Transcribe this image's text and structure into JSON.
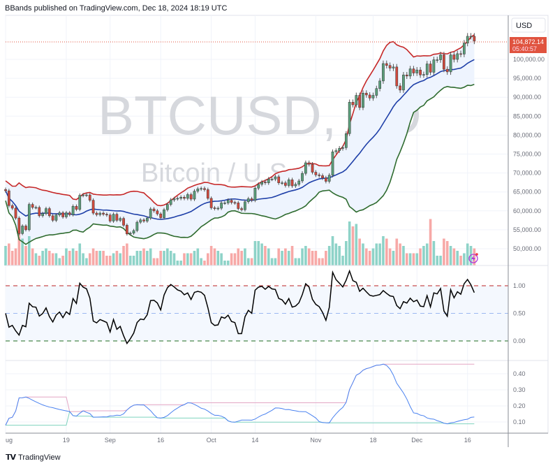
{
  "header": {
    "text": "BBands published on TradingView.com, Dec 18, 2024 18:19 UTC"
  },
  "footer": {
    "brand": "TradingView",
    "logo_text": "TV"
  },
  "watermark": {
    "symbol": "BTCUSD, 1D",
    "description": "Bitcoin / U.S. Dollar"
  },
  "currency_button": "USD",
  "last_price": {
    "value": "104,872.14",
    "countdown": "05:40:57",
    "color": "#e0533f"
  },
  "colors": {
    "up": "#5a9e7a",
    "down": "#d1493d",
    "upper_band": "#c62828",
    "basis": "#1e3fa8",
    "lower_band": "#2e6b2e",
    "band_fill": "#eef4fe",
    "vol_up": "#8ed3c8",
    "vol_down": "#f7a9a7",
    "bandwidth": "#4a82f0",
    "bw_high": "#e3a6c4",
    "bw_low": "#7fd3bf",
    "pctb": "#000000"
  },
  "chart_data": [
    {
      "type": "candlestick",
      "title": "",
      "start_date": "2024-08-01",
      "end_date": "2024-12-18",
      "close": [
        65300,
        61400,
        60700,
        58100,
        54000,
        56000,
        55000,
        61700,
        60900,
        60900,
        58700,
        59300,
        60600,
        58700,
        57500,
        58900,
        59500,
        58400,
        59500,
        59000,
        61200,
        60400,
        64100,
        64200,
        64200,
        62800,
        59400,
        59000,
        59400,
        59100,
        58900,
        57300,
        59100,
        57500,
        58000,
        56200,
        53900,
        54100,
        54800,
        57000,
        57600,
        57300,
        58100,
        60500,
        60000,
        59200,
        58200,
        60300,
        61700,
        62900,
        63200,
        63300,
        63600,
        63300,
        64300,
        63100,
        65200,
        65800,
        65900,
        65600,
        63300,
        60800,
        60600,
        60700,
        62100,
        62100,
        62800,
        62200,
        62100,
        60600,
        60300,
        62400,
        63200,
        62800,
        66000,
        67000,
        67600,
        67400,
        68400,
        68400,
        69000,
        67400,
        67400,
        66700,
        68200,
        66600,
        67000,
        67900,
        69900,
        72700,
        72300,
        70200,
        69500,
        69300,
        68700,
        67800,
        69400,
        75600,
        75900,
        76500,
        76700,
        80400,
        88700,
        88000,
        90500,
        87300,
        91100,
        90600,
        89800,
        90500,
        92300,
        94300,
        98900,
        98400,
        97700,
        98000,
        93000,
        91900,
        95900,
        95600,
        97500,
        96400,
        97200,
        95900,
        96000,
        98800,
        96600,
        99900,
        99900,
        101200,
        97400,
        96700,
        101200,
        100000,
        101500,
        101400,
        104300,
        106100,
        106100,
        104872.14
      ],
      "volume_relative": [
        40,
        45,
        30,
        35,
        90,
        55,
        40,
        60,
        35,
        25,
        20,
        30,
        35,
        30,
        25,
        25,
        15,
        20,
        35,
        30,
        35,
        30,
        45,
        25,
        15,
        25,
        35,
        30,
        30,
        30,
        20,
        20,
        25,
        30,
        25,
        40,
        45,
        20,
        20,
        30,
        30,
        35,
        30,
        35,
        15,
        15,
        30,
        30,
        35,
        30,
        25,
        10,
        10,
        25,
        25,
        25,
        30,
        35,
        15,
        10,
        25,
        40,
        35,
        30,
        25,
        10,
        10,
        25,
        25,
        35,
        30,
        35,
        15,
        15,
        50,
        50,
        45,
        40,
        35,
        15,
        15,
        35,
        30,
        35,
        30,
        40,
        15,
        15,
        35,
        40,
        35,
        30,
        30,
        15,
        15,
        30,
        40,
        60,
        45,
        40,
        20,
        50,
        90,
        80,
        85,
        55,
        45,
        35,
        30,
        35,
        45,
        45,
        60,
        55,
        35,
        30,
        55,
        45,
        40,
        25,
        25,
        25,
        25,
        35,
        40,
        45,
        95,
        50,
        20,
        20,
        55,
        50,
        40,
        35,
        30,
        20,
        25,
        45,
        40,
        35
      ],
      "indicator": "Bollinger Bands (20, 2)",
      "y_axis": {
        "ticks": [
          "100,000.00",
          "95,000.00",
          "90,000.00",
          "85,000.00",
          "80,000.00",
          "75,000.00",
          "70,000.00",
          "65,000.00",
          "60,000.00",
          "55,000.00",
          "50,000.00"
        ],
        "values": [
          100000,
          95000,
          90000,
          85000,
          80000,
          75000,
          70000,
          65000,
          60000,
          55000,
          50000
        ]
      },
      "ylim": [
        45000,
        109000
      ],
      "grid": true
    },
    {
      "type": "line",
      "indicator": "Bollinger Bands %B",
      "y_axis": {
        "ticks": [
          "1.00",
          "0.50",
          "0.00"
        ],
        "values": [
          1,
          0.5,
          0
        ]
      },
      "ylim": [
        -0.34,
        1.33
      ],
      "levels": [
        1.0,
        0.5,
        0.0
      ]
    },
    {
      "type": "line",
      "indicator": "Bollinger BandWidth",
      "y_axis": {
        "ticks": [
          "0.40",
          "0.30",
          "0.20",
          "0.10"
        ],
        "values": [
          0.4,
          0.3,
          0.2,
          0.1
        ]
      },
      "ylim": [
        0.05,
        0.48
      ]
    }
  ],
  "time_axis": [
    {
      "label": "ug",
      "date": "2024-08-01"
    },
    {
      "label": "19",
      "date": "2024-08-19"
    },
    {
      "label": "Sep",
      "date": "2024-09-01"
    },
    {
      "label": "16",
      "date": "2024-09-16"
    },
    {
      "label": "Oct",
      "date": "2024-10-01"
    },
    {
      "label": "14",
      "date": "2024-10-14"
    },
    {
      "label": "Nov",
      "date": "2024-11-01"
    },
    {
      "label": "18",
      "date": "2024-11-18"
    },
    {
      "label": "Dec",
      "date": "2024-12-01"
    },
    {
      "label": "16",
      "date": "2024-12-16"
    }
  ]
}
